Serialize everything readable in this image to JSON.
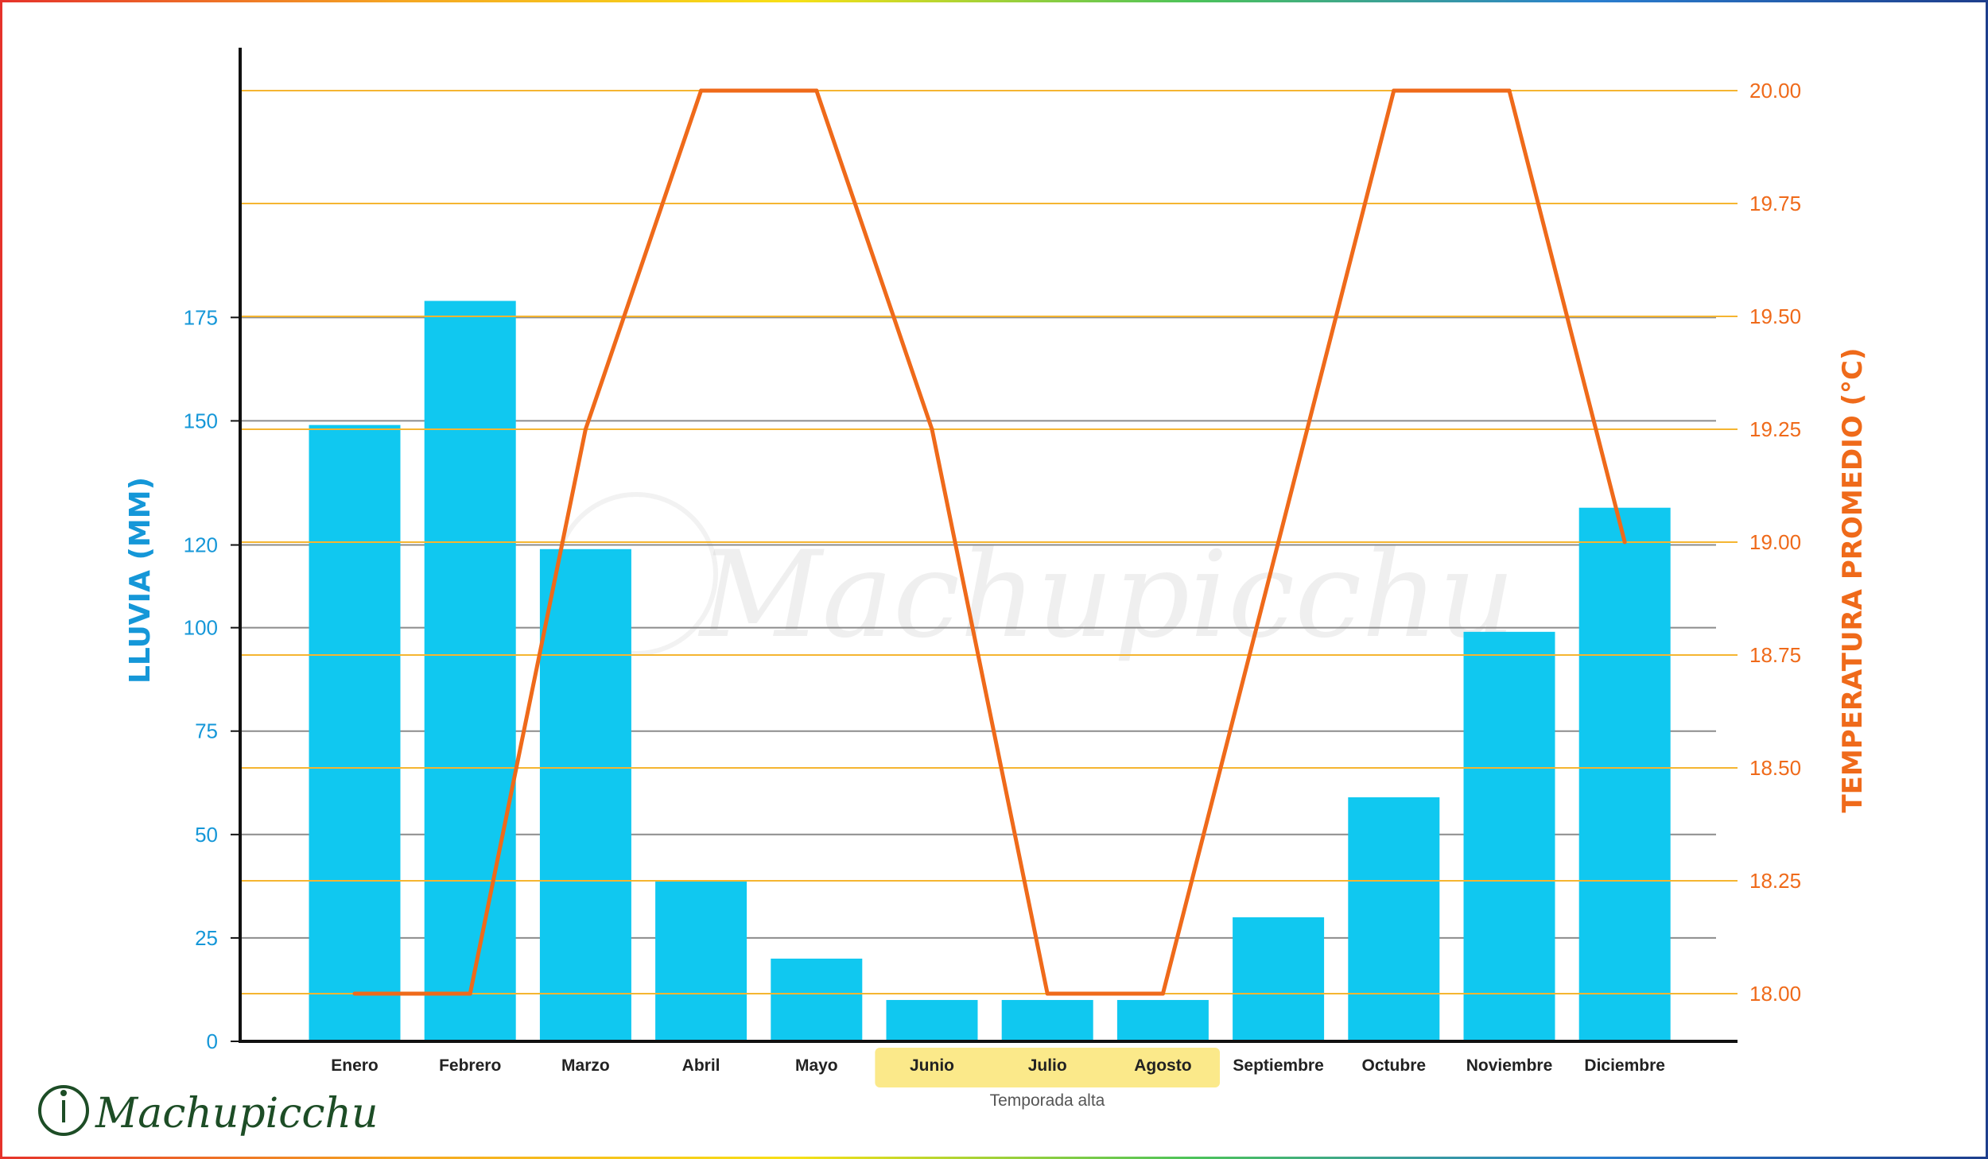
{
  "chart_data": {
    "type": "bar",
    "categories": [
      "Enero",
      "Febrero",
      "Marzo",
      "Abril",
      "Mayo",
      "Junio",
      "Julio",
      "Agosto",
      "Septiembre",
      "Octubre",
      "Noviembre",
      "Diciembre"
    ],
    "series": [
      {
        "name": "LLUVIA (MM)",
        "type": "bar",
        "axis": "left",
        "values": [
          149,
          179,
          119,
          39,
          20,
          10,
          10,
          10,
          30,
          59,
          99,
          129
        ]
      },
      {
        "name": "TEMPERATURA PROMEDIO (°C)",
        "type": "line",
        "axis": "right",
        "values": [
          18.0,
          18.0,
          19.25,
          20.0,
          20.0,
          19.25,
          18.0,
          18.0,
          19.0,
          20.0,
          20.0,
          19.0
        ]
      }
    ],
    "ylabel": "LLUVIA (MM)",
    "ylabel_right": "TEMPERATURA PROMEDIO (°C)",
    "ylim": [
      0,
      185
    ],
    "ylim_right": [
      17.9,
      20.0
    ],
    "yticks": [
      "0",
      "25",
      "50",
      "75",
      "100",
      "120",
      "150",
      "175"
    ],
    "yticks_right": [
      "18.00",
      "18.25",
      "18.50",
      "18.75",
      "19.00",
      "19.25",
      "19.50",
      "19.75",
      "20.00"
    ],
    "highlight": {
      "label": "Temporada alta",
      "categories": [
        "Junio",
        "Julio",
        "Agosto"
      ]
    },
    "grid": true,
    "colors": {
      "bars": "#10c8f0",
      "line": "#ef6a1a",
      "left_axis": "#1597d8",
      "right_axis": "#ef6a1a",
      "grid_left": "#8c8c8c",
      "grid_right": "#f5b531",
      "highlight": "#fbe98a"
    }
  },
  "watermark": {
    "text": "Machupicchu"
  },
  "logo": {
    "text": "Machupicchu"
  }
}
